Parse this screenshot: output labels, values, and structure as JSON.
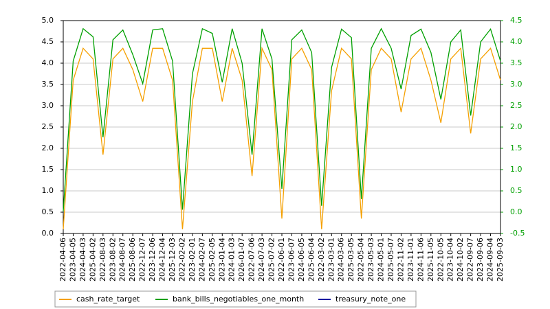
{
  "chart_data": {
    "type": "line",
    "categories": [
      "2022-04-06",
      "2023-04-05",
      "2024-04-03",
      "2025-04-02",
      "2022-08-03",
      "2023-08-02",
      "2024-08-07",
      "2025-08-06",
      "2022-12-07",
      "2023-12-06",
      "2024-12-04",
      "2025-12-03",
      "2022-02-02",
      "2023-02-01",
      "2024-02-07",
      "2025-02-05",
      "2023-01-04",
      "2024-01-03",
      "2026-01-07",
      "2022-07-06",
      "2024-07-03",
      "2025-07-02",
      "2022-06-01",
      "2023-06-07",
      "2024-06-05",
      "2025-06-04",
      "2022-03-02",
      "2023-03-01",
      "2024-03-06",
      "2025-03-05",
      "2022-05-04",
      "2023-05-03",
      "2024-05-01",
      "2025-05-07",
      "2022-11-02",
      "2023-11-01",
      "2024-11-06",
      "2025-11-05",
      "2022-10-05",
      "2023-10-04",
      "2024-10-02",
      "2022-09-07",
      "2023-09-06",
      "2024-09-04",
      "2025-09-03"
    ],
    "series": [
      {
        "name": "cash_rate_target",
        "color": "#f5a000",
        "values": [
          0.1,
          3.6,
          4.35,
          4.1,
          1.85,
          4.1,
          4.35,
          3.85,
          3.1,
          4.35,
          4.35,
          3.6,
          0.1,
          3.1,
          4.35,
          4.35,
          3.1,
          4.35,
          3.6,
          1.35,
          4.35,
          3.85,
          0.35,
          4.1,
          4.35,
          3.85,
          0.1,
          3.35,
          4.35,
          4.1,
          0.35,
          3.85,
          4.35,
          4.1,
          2.85,
          4.1,
          4.35,
          3.6,
          2.6,
          4.1,
          4.35,
          2.35,
          4.1,
          4.35,
          3.6
        ]
      },
      {
        "name": "bank_bills_negotiables_one_month",
        "color": "#00a000",
        "axis": "y2",
        "values": [
          0.02,
          3.55,
          4.31,
          4.12,
          1.76,
          4.05,
          4.28,
          3.7,
          3.02,
          4.28,
          4.31,
          3.55,
          0.06,
          3.25,
          4.31,
          4.2,
          3.05,
          4.31,
          3.5,
          1.35,
          4.31,
          3.6,
          0.55,
          4.05,
          4.28,
          3.75,
          0.15,
          3.4,
          4.3,
          4.1,
          0.31,
          3.85,
          4.31,
          3.85,
          2.89,
          4.15,
          4.3,
          3.75,
          2.65,
          4.0,
          4.28,
          2.27,
          4.0,
          4.3,
          3.55
        ]
      },
      {
        "name": "treasury_note_one",
        "color": "#0000a0",
        "values": [
          null,
          null,
          null,
          null,
          null,
          null,
          null,
          null,
          null,
          null,
          null,
          null,
          null,
          null,
          null,
          null,
          null,
          null,
          null,
          null,
          null,
          null,
          null,
          null,
          null,
          null,
          null,
          null,
          null,
          null,
          null,
          null,
          null,
          null,
          null,
          null,
          null,
          null,
          null,
          null,
          null,
          null,
          null,
          null,
          null
        ]
      }
    ],
    "ylim": [
      0,
      5
    ],
    "yticks": [
      {
        "value": 0,
        "label": "0.0"
      },
      0.5,
      {
        "value": 1,
        "label": "1.0"
      },
      1.5,
      {
        "value": 2,
        "label": "2.0"
      },
      2.5,
      {
        "value": 3,
        "label": "3.0"
      },
      3.5,
      {
        "value": 4,
        "label": "4.0"
      },
      4.5,
      {
        "value": 5,
        "label": "5.0"
      }
    ],
    "y2lim": [
      -0.5,
      4.5
    ],
    "y2ticks": [
      -0.5,
      {
        "value": 0,
        "label": "0.0"
      },
      0.5,
      {
        "value": 1,
        "label": "1.0"
      },
      1.5,
      {
        "value": 2,
        "label": "2.0"
      },
      2.5,
      {
        "value": 3,
        "label": "3.0"
      },
      3.5,
      {
        "value": 4,
        "label": "4.0"
      },
      4.5
    ],
    "y2color": "#00a000",
    "grid": true,
    "legend": "bottom"
  }
}
